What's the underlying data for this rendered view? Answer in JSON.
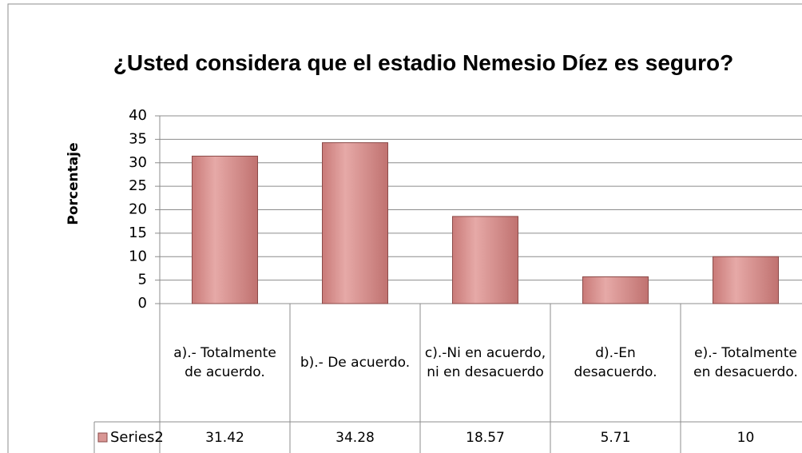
{
  "chart_data": {
    "type": "bar",
    "title": "¿Usted considera que el estadio Nemesio Díez es seguro?",
    "y_label": "Porcentaje",
    "categories": [
      "a).- Totalmente de acuerdo.",
      "b).- De acuerdo.",
      "c).-Ni en acuerdo, ni en desacuerdo",
      "d).-En desacuerdo.",
      "e).- Totalmente en desacuerdo."
    ],
    "series": [
      {
        "name": "Series2",
        "color": "#d99694",
        "values": [
          31.42,
          34.28,
          18.57,
          5.71,
          10
        ]
      }
    ],
    "ylim": [
      0,
      40
    ],
    "yticks": [
      0,
      5,
      10,
      15,
      20,
      25,
      30,
      35,
      40
    ],
    "grid": true
  }
}
